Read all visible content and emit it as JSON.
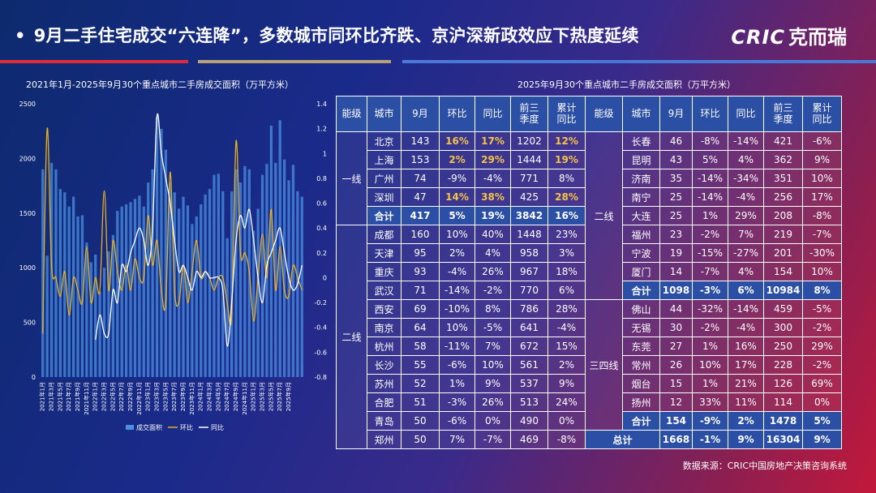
{
  "title": "9月二手住宅成交“六连降”，多数城市同环比齐跌、京沪深新政效应下热度延续",
  "bullet": "•",
  "logo": {
    "latin": "CRIC",
    "cn": "克而瑞"
  },
  "source": "数据来源：CRIC中国房地产决策咨询系统",
  "chart_data": {
    "type": "bar+line",
    "title": "2021年1月-2025年9月30个重点城市二手房成交面积（万平方米）",
    "y_left_range": [
      0,
      2500
    ],
    "y_left_ticks": [
      "0",
      "500",
      "1000",
      "1500",
      "2000",
      "2500"
    ],
    "y_right_range": [
      -0.8,
      1.4
    ],
    "y_right_ticks": [
      "-0.8",
      "-0.6",
      "-0.4",
      "-0.2",
      "0",
      "0.2",
      "0.4",
      "0.6",
      "0.8",
      "1",
      "1.2",
      "1.4"
    ],
    "x_tick_labels": [
      "2021年1月",
      "2021年3月",
      "2021年5月",
      "2021年7月",
      "2021年9月",
      "2021年11月",
      "2022年1月",
      "2022年3月",
      "2022年5月",
      "2022年7月",
      "2022年9月",
      "2022年11月",
      "2023年1月",
      "2023年3月",
      "2023年5月",
      "2023年7月",
      "2023年9月",
      "2023年11月",
      "2024年1月",
      "2024年3月",
      "2024年5月",
      "2024年7月",
      "2024年9月",
      "2024年11月",
      "2025年1月",
      "2025年3月",
      "2025年5月",
      "2025年7月",
      "2025年9月"
    ],
    "series": [
      {
        "name": "成交面积",
        "color": "#4a90e2",
        "values": [
          1900,
          1110,
          1960,
          1900,
          1720,
          1690,
          1560,
          1650,
          1470,
          1480,
          1230,
          1050,
          1120,
          780,
          1000,
          1150,
          1300,
          1520,
          1560,
          1580,
          1600,
          1630,
          1660,
          1560,
          1780,
          1900,
          2380,
          2270,
          2080,
          1780,
          1690,
          1540,
          1650,
          1570,
          1400,
          1470,
          1580,
          1670,
          1720,
          1850,
          1860,
          1700,
          1270,
          1700,
          1900,
          1780,
          1930,
          1900,
          1340,
          1540,
          1850,
          1950,
          2300,
          1960,
          2350,
          1990,
          1800,
          1940,
          1700,
          1650
        ]
      },
      {
        "name": "环比",
        "color": "#e8b020",
        "values": [
          -0.45,
          1.2,
          0.1,
          0.0,
          -0.15,
          0.05,
          -0.3,
          0.0,
          -0.1,
          -0.2,
          0.25,
          -0.2,
          0.0,
          -0.1,
          0.7,
          -0.1,
          0.3,
          0.05,
          -0.1,
          0.1,
          -0.1,
          0.15,
          0.0,
          0.0,
          0.5,
          0.1,
          0.3,
          -0.1,
          -0.2,
          0.85,
          -0.1,
          -0.2,
          0.1,
          -0.2,
          0.05,
          0.3,
          0.0,
          0.05,
          0.0,
          -0.1,
          0.0,
          0.0,
          -0.2,
          -0.3,
          1.1,
          0.2,
          0.2,
          0.05,
          -0.35,
          0.0,
          0.35,
          0.0,
          0.55,
          -0.1,
          0.25,
          -0.1,
          -0.15,
          0.1,
          0.0,
          -0.1
        ]
      },
      {
        "name": "同比",
        "color": "#ffffff",
        "values": [
          null,
          null,
          null,
          null,
          null,
          null,
          null,
          null,
          null,
          null,
          null,
          null,
          -0.5,
          -0.3,
          -0.45,
          -0.45,
          -0.1,
          -0.2,
          0.1,
          0.05,
          0.2,
          0.3,
          0.4,
          0.3,
          0.1,
          0.4,
          1.3,
          1.0,
          0.8,
          0.6,
          0.3,
          0.05,
          0.1,
          0.0,
          -0.1,
          0.05,
          0.0,
          0.05,
          0.0,
          0.0,
          0.0,
          -0.1,
          -0.55,
          -0.2,
          0.3,
          0.5,
          0.4,
          0.55,
          0.3,
          0.0,
          -0.2,
          0.1,
          0.2,
          0.3,
          0.4,
          0.2,
          0.0,
          -0.1,
          -0.05,
          0.1
        ]
      }
    ],
    "legend": [
      "成交面积",
      "环比",
      "同比"
    ],
    "legend_placement": "bottom"
  },
  "table": {
    "title": "2025年9月30个重点城市二手房成交面积（万平方米）",
    "headers": [
      "能级",
      "城市",
      "9月",
      "环比",
      "同比",
      "前三季度",
      "累计同比",
      "能级",
      "城市",
      "9月",
      "环比",
      "同比",
      "前三季度",
      "累计同比"
    ],
    "left_groups": [
      {
        "tier": "一线",
        "rows": [
          {
            "city": "北京",
            "sep": "143",
            "mom": "16%",
            "yoy": "17%",
            "q3": "1202",
            "cum": "12%",
            "hl": [
              true,
              true,
              true
            ]
          },
          {
            "city": "上海",
            "sep": "153",
            "mom": "2%",
            "yoy": "29%",
            "q3": "1444",
            "cum": "19%",
            "hl": [
              true,
              true,
              true
            ]
          },
          {
            "city": "广州",
            "sep": "74",
            "mom": "-9%",
            "yoy": "-4%",
            "q3": "771",
            "cum": "8%",
            "hl": [
              false,
              false,
              false
            ]
          },
          {
            "city": "深圳",
            "sep": "47",
            "mom": "14%",
            "yoy": "38%",
            "q3": "425",
            "cum": "28%",
            "hl": [
              true,
              true,
              true
            ]
          },
          {
            "city": "合计",
            "sep": "417",
            "mom": "5%",
            "yoy": "19%",
            "q3": "3842",
            "cum": "16%",
            "sum": true
          }
        ]
      },
      {
        "tier": "二线",
        "rows": [
          {
            "city": "成都",
            "sep": "160",
            "mom": "10%",
            "yoy": "40%",
            "q3": "1448",
            "cum": "23%"
          },
          {
            "city": "天津",
            "sep": "95",
            "mom": "2%",
            "yoy": "4%",
            "q3": "958",
            "cum": "3%"
          },
          {
            "city": "重庆",
            "sep": "93",
            "mom": "-4%",
            "yoy": "26%",
            "q3": "967",
            "cum": "18%"
          },
          {
            "city": "武汉",
            "sep": "71",
            "mom": "-14%",
            "yoy": "-2%",
            "q3": "770",
            "cum": "6%"
          },
          {
            "city": "西安",
            "sep": "69",
            "mom": "-10%",
            "yoy": "8%",
            "q3": "786",
            "cum": "28%"
          },
          {
            "city": "南京",
            "sep": "64",
            "mom": "10%",
            "yoy": "-5%",
            "q3": "641",
            "cum": "-4%"
          },
          {
            "city": "杭州",
            "sep": "58",
            "mom": "-11%",
            "yoy": "7%",
            "q3": "672",
            "cum": "15%"
          },
          {
            "city": "长沙",
            "sep": "55",
            "mom": "-6%",
            "yoy": "10%",
            "q3": "561",
            "cum": "2%"
          },
          {
            "city": "苏州",
            "sep": "52",
            "mom": "1%",
            "yoy": "9%",
            "q3": "537",
            "cum": "9%"
          },
          {
            "city": "合肥",
            "sep": "51",
            "mom": "-3%",
            "yoy": "26%",
            "q3": "513",
            "cum": "24%"
          },
          {
            "city": "青岛",
            "sep": "50",
            "mom": "-6%",
            "yoy": "0%",
            "q3": "490",
            "cum": "0%"
          },
          {
            "city": "郑州",
            "sep": "50",
            "mom": "7%",
            "yoy": "-7%",
            "q3": "469",
            "cum": "-8%"
          }
        ]
      }
    ],
    "right_groups": [
      {
        "tier": "二线",
        "rows": [
          {
            "city": "长春",
            "sep": "46",
            "mom": "-8%",
            "yoy": "-14%",
            "q3": "421",
            "cum": "-6%"
          },
          {
            "city": "昆明",
            "sep": "43",
            "mom": "5%",
            "yoy": "4%",
            "q3": "362",
            "cum": "9%"
          },
          {
            "city": "济南",
            "sep": "35",
            "mom": "-14%",
            "yoy": "-34%",
            "q3": "351",
            "cum": "10%"
          },
          {
            "city": "南宁",
            "sep": "25",
            "mom": "-14%",
            "yoy": "-4%",
            "q3": "256",
            "cum": "17%"
          },
          {
            "city": "大连",
            "sep": "25",
            "mom": "1%",
            "yoy": "29%",
            "q3": "208",
            "cum": "-8%"
          },
          {
            "city": "福州",
            "sep": "23",
            "mom": "-2%",
            "yoy": "7%",
            "q3": "219",
            "cum": "-7%"
          },
          {
            "city": "宁波",
            "sep": "19",
            "mom": "-15%",
            "yoy": "-27%",
            "q3": "201",
            "cum": "-30%"
          },
          {
            "city": "厦门",
            "sep": "14",
            "mom": "-7%",
            "yoy": "4%",
            "q3": "154",
            "cum": "10%"
          },
          {
            "city": "合计",
            "sep": "1098",
            "mom": "-3%",
            "yoy": "6%",
            "q3": "10984",
            "cum": "8%",
            "sum": true
          }
        ]
      },
      {
        "tier": "三四线",
        "rows": [
          {
            "city": "佛山",
            "sep": "44",
            "mom": "-32%",
            "yoy": "-14%",
            "q3": "459",
            "cum": "-5%"
          },
          {
            "city": "无锡",
            "sep": "30",
            "mom": "-2%",
            "yoy": "-4%",
            "q3": "300",
            "cum": "-2%"
          },
          {
            "city": "东莞",
            "sep": "27",
            "mom": "1%",
            "yoy": "16%",
            "q3": "250",
            "cum": "29%"
          },
          {
            "city": "常州",
            "sep": "26",
            "mom": "10%",
            "yoy": "17%",
            "q3": "228",
            "cum": "-2%"
          },
          {
            "city": "烟台",
            "sep": "15",
            "mom": "1%",
            "yoy": "21%",
            "q3": "126",
            "cum": "69%"
          },
          {
            "city": "扬州",
            "sep": "12",
            "mom": "33%",
            "yoy": "11%",
            "q3": "114",
            "cum": "0%"
          },
          {
            "city": "合计",
            "sep": "154",
            "mom": "-9%",
            "yoy": "2%",
            "q3": "1478",
            "cum": "5%",
            "sum": true
          }
        ]
      }
    ],
    "total": {
      "label": "总计",
      "sep": "1668",
      "mom": "-1%",
      "yoy": "9%",
      "q3": "16304",
      "cum": "9%"
    }
  }
}
